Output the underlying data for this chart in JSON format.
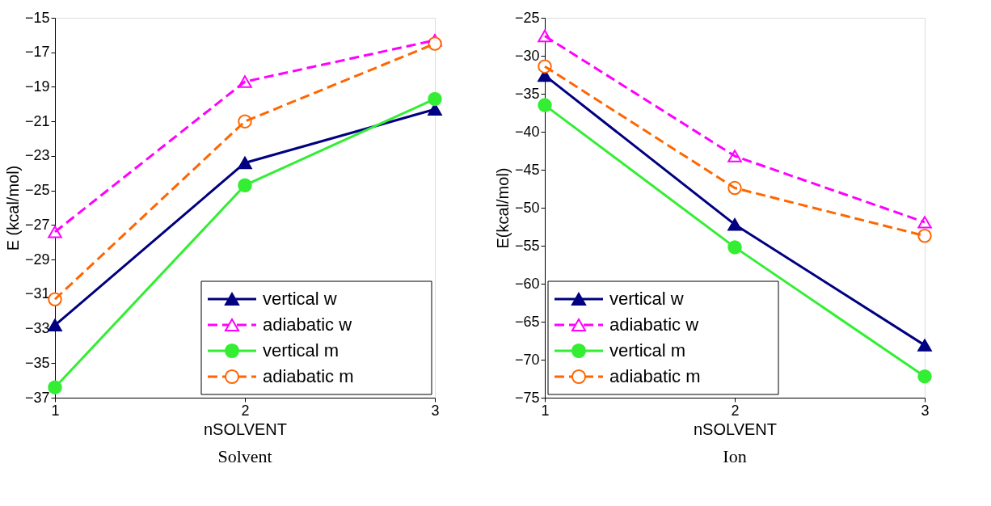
{
  "chart_data": [
    {
      "type": "line",
      "title": "Solvent",
      "xlabel": "nSOLVENT",
      "ylabel": "E (kcal/mol)",
      "x": [
        1,
        2,
        3
      ],
      "xlim": [
        1,
        3
      ],
      "xticks": [
        1,
        2,
        3
      ],
      "ylim": [
        -37,
        -15
      ],
      "yticks": [
        -37,
        -35,
        -33,
        -31,
        -29,
        -27,
        -25,
        -23,
        -21,
        -19,
        -17,
        -15
      ],
      "grid": false,
      "legend": "bottom right",
      "series": [
        {
          "name": "vertical w",
          "color": "#000080",
          "marker": "triangle",
          "line_style": "solid",
          "values": [
            -32.8,
            -23.4,
            -20.3
          ]
        },
        {
          "name": "adiabatic w",
          "color": "#ff00ff",
          "marker": "triangle",
          "line_style": "dashed",
          "values": [
            -27.4,
            -18.7,
            -16.3
          ]
        },
        {
          "name": "vertical m",
          "color": "#33ee33",
          "marker": "circle",
          "line_style": "solid",
          "values": [
            -36.4,
            -24.7,
            -19.7
          ]
        },
        {
          "name": "adiabatic m",
          "color": "#ff6600",
          "marker": "circle",
          "line_style": "dashed",
          "values": [
            -31.3,
            -21.0,
            -16.5
          ]
        }
      ]
    },
    {
      "type": "line",
      "title": "Ion",
      "xlabel": "nSOLVENT",
      "ylabel": "E(kcal/mol)",
      "x": [
        1,
        2,
        3
      ],
      "xlim": [
        1,
        3
      ],
      "xticks": [
        1,
        2,
        3
      ],
      "ylim": [
        -75,
        -25
      ],
      "yticks": [
        -75,
        -70,
        -65,
        -60,
        -55,
        -50,
        -45,
        -40,
        -35,
        -30,
        -25
      ],
      "grid": false,
      "legend": "bottom left",
      "series": [
        {
          "name": "vertical w",
          "color": "#000080",
          "marker": "triangle",
          "line_style": "solid",
          "values": [
            -32.6,
            -52.2,
            -68.1
          ]
        },
        {
          "name": "adiabatic w",
          "color": "#ff00ff",
          "marker": "triangle",
          "line_style": "dashed",
          "values": [
            -27.4,
            -43.2,
            -51.9
          ]
        },
        {
          "name": "vertical m",
          "color": "#33ee33",
          "marker": "circle",
          "line_style": "solid",
          "values": [
            -36.5,
            -55.2,
            -72.2
          ]
        },
        {
          "name": "adiabatic m",
          "color": "#ff6600",
          "marker": "circle",
          "line_style": "dashed",
          "values": [
            -31.4,
            -47.4,
            -53.7
          ]
        }
      ]
    }
  ]
}
